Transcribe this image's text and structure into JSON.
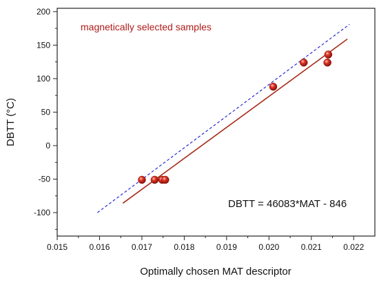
{
  "chart_data": {
    "type": "scatter",
    "xlabel": "Optimally chosen MAT descriptor",
    "ylabel": "DBTT  (°C)",
    "xlim": [
      0.015,
      0.0225
    ],
    "ylim": [
      -135,
      205
    ],
    "xticks": [
      "0.015",
      "0.016",
      "0.017",
      "0.018",
      "0.019",
      "0.020",
      "0.021",
      "0.022"
    ],
    "yticks": [
      "-100",
      "-50",
      "0",
      "50",
      "100",
      "150",
      "200"
    ],
    "grid": false,
    "legend_position": "top-left",
    "series": [
      {
        "name": "magnetically selected samples",
        "color": "#cc1a1a",
        "points": [
          {
            "x": 0.017,
            "y": -51
          },
          {
            "x": 0.0173,
            "y": -51
          },
          {
            "x": 0.01748,
            "y": -51
          },
          {
            "x": 0.01755,
            "y": -51
          },
          {
            "x": 0.0201,
            "y": 88
          },
          {
            "x": 0.02082,
            "y": 124
          },
          {
            "x": 0.02138,
            "y": 124
          },
          {
            "x": 0.0214,
            "y": 136
          }
        ]
      }
    ],
    "fit_line": {
      "color": "#a52a1a",
      "x": [
        0.01655,
        0.02185
      ],
      "y": [
        -86,
        159
      ]
    },
    "reference_line": {
      "color": "#2a2ad0",
      "style": "dashed",
      "x": [
        0.01595,
        0.0219
      ],
      "y": [
        -100,
        181
      ]
    },
    "annotation": "DBTT = 46083*MAT - 846"
  }
}
